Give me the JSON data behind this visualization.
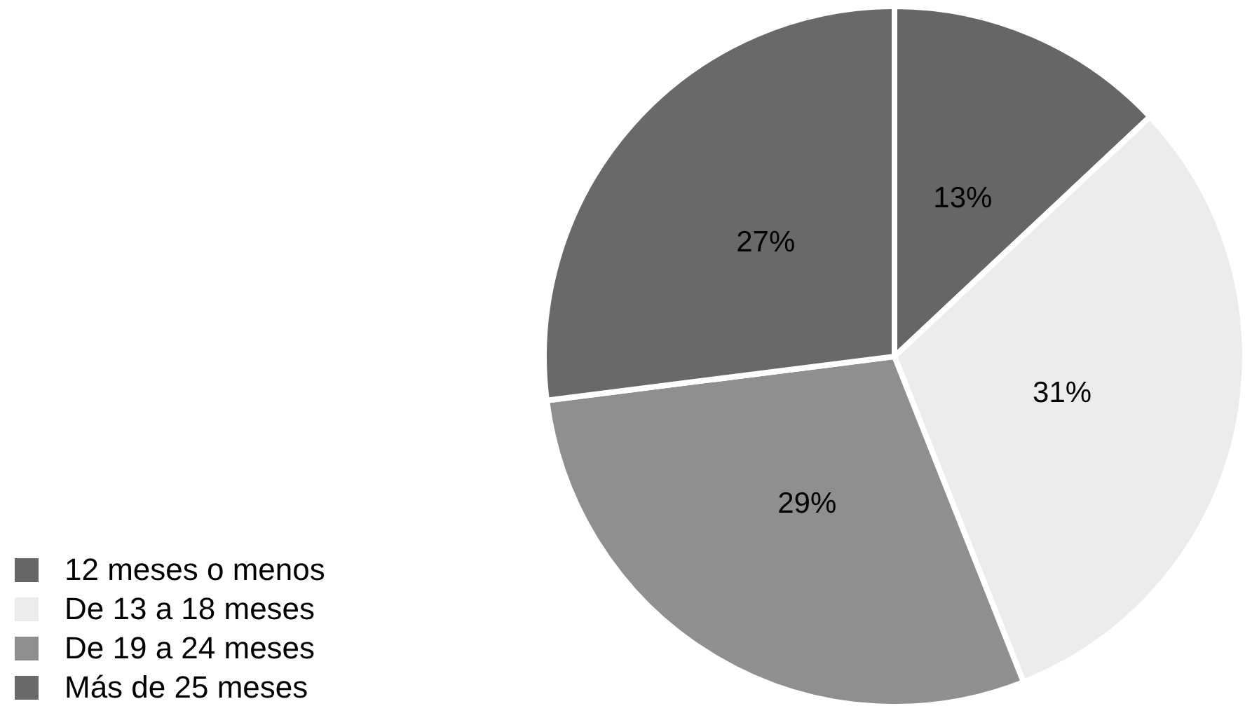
{
  "chart_data": {
    "type": "pie",
    "categories": [
      "12 meses o menos",
      "De 13 a 18 meses",
      "De 19 a 24 meses",
      "Más de 25 meses"
    ],
    "values": [
      13,
      31,
      29,
      27
    ],
    "colors": [
      "#666666",
      "#ececec",
      "#8f8f8f",
      "#696969"
    ],
    "value_labels": [
      "13%",
      "31%",
      "29%",
      "27%"
    ],
    "legend": "bottom left"
  }
}
